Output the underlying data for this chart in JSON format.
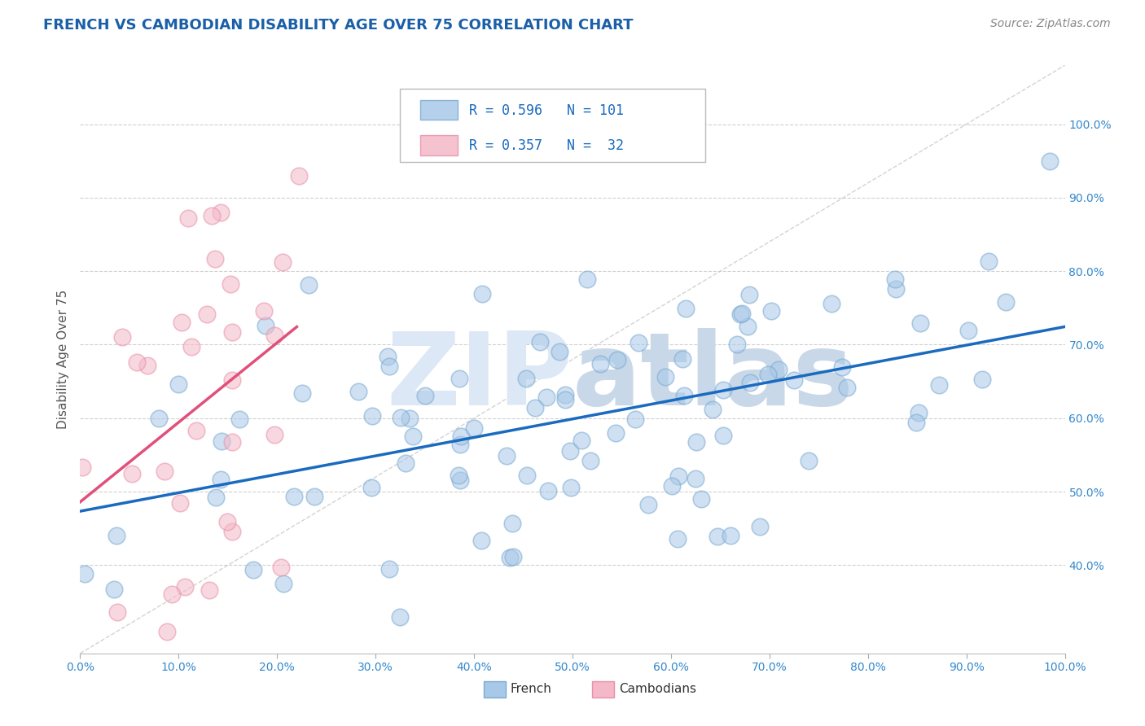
{
  "title": "FRENCH VS CAMBODIAN DISABILITY AGE OVER 75 CORRELATION CHART",
  "source_text": "Source: ZipAtlas.com",
  "ylabel": "Disability Age Over 75",
  "french_R": 0.596,
  "french_N": 101,
  "cambodian_R": 0.357,
  "cambodian_N": 32,
  "french_color": "#a8c8e8",
  "cambodian_color": "#f4b8c8",
  "french_edge_color": "#7aaad0",
  "cambodian_edge_color": "#e890a8",
  "french_line_color": "#1a6abf",
  "cambodian_line_color": "#e0507a",
  "ref_line_color": "#c8c8c8",
  "grid_color": "#d0d0d0",
  "title_color": "#1a5fa8",
  "watermark_main_color": "#dce8f5",
  "watermark_accent_color": "#c8d8e8",
  "axis_label_color": "#555555",
  "tick_label_color": "#3388cc",
  "source_color": "#888888",
  "legend_color": "#1a6abf",
  "xmin": 0.0,
  "xmax": 1.0,
  "ymin": 0.28,
  "ymax": 1.08,
  "ytick_vals": [
    0.4,
    0.5,
    0.6,
    0.7,
    0.8,
    0.9,
    1.0
  ],
  "ytick_labels": [
    "40.0%",
    "50.0%",
    "60.0%",
    "70.0%",
    "80.0%",
    "90.0%",
    "100.0%"
  ],
  "xtick_vals": [
    0.0,
    0.1,
    0.2,
    0.3,
    0.4,
    0.5,
    0.6,
    0.7,
    0.8,
    0.9,
    1.0
  ],
  "xtick_labels": [
    "0.0%",
    "10.0%",
    "20.0%",
    "30.0%",
    "40.0%",
    "50.0%",
    "60.0%",
    "70.0%",
    "80.0%",
    "90.0%",
    "100.0%"
  ],
  "french_seed": 42,
  "cambodian_seed": 123,
  "marker_size": 220,
  "marker_alpha": 0.55,
  "marker_lw": 1.2
}
